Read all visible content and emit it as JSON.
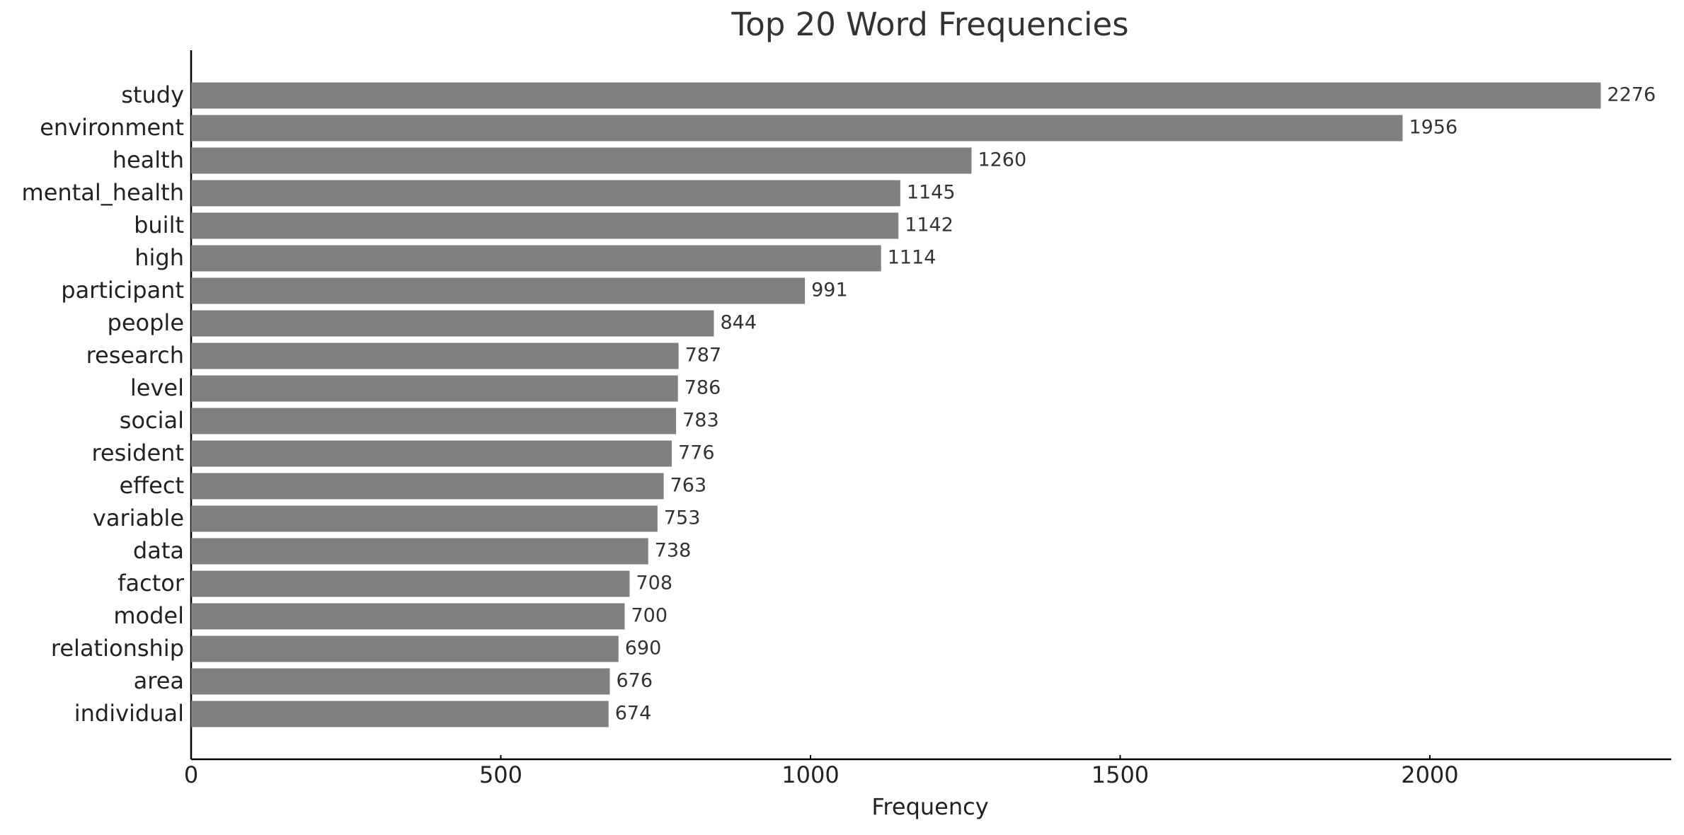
{
  "chart_data": {
    "type": "barh",
    "title": "Top 20 Word Frequencies",
    "x_label": "Frequency",
    "categories": [
      "study",
      "environment",
      "health",
      "mental_health",
      "built",
      "high",
      "participant",
      "people",
      "research",
      "level",
      "social",
      "resident",
      "effect",
      "variable",
      "data",
      "factor",
      "model",
      "relationship",
      "area",
      "individual"
    ],
    "values": [
      2276,
      1956,
      1260,
      1145,
      1142,
      1114,
      991,
      844,
      787,
      786,
      783,
      776,
      763,
      753,
      738,
      708,
      700,
      690,
      676,
      674
    ],
    "color": "#808080",
    "xlim": [
      0,
      2389.8
    ],
    "xticks": [
      0,
      500,
      1000,
      1500,
      2000
    ],
    "grid": false
  }
}
